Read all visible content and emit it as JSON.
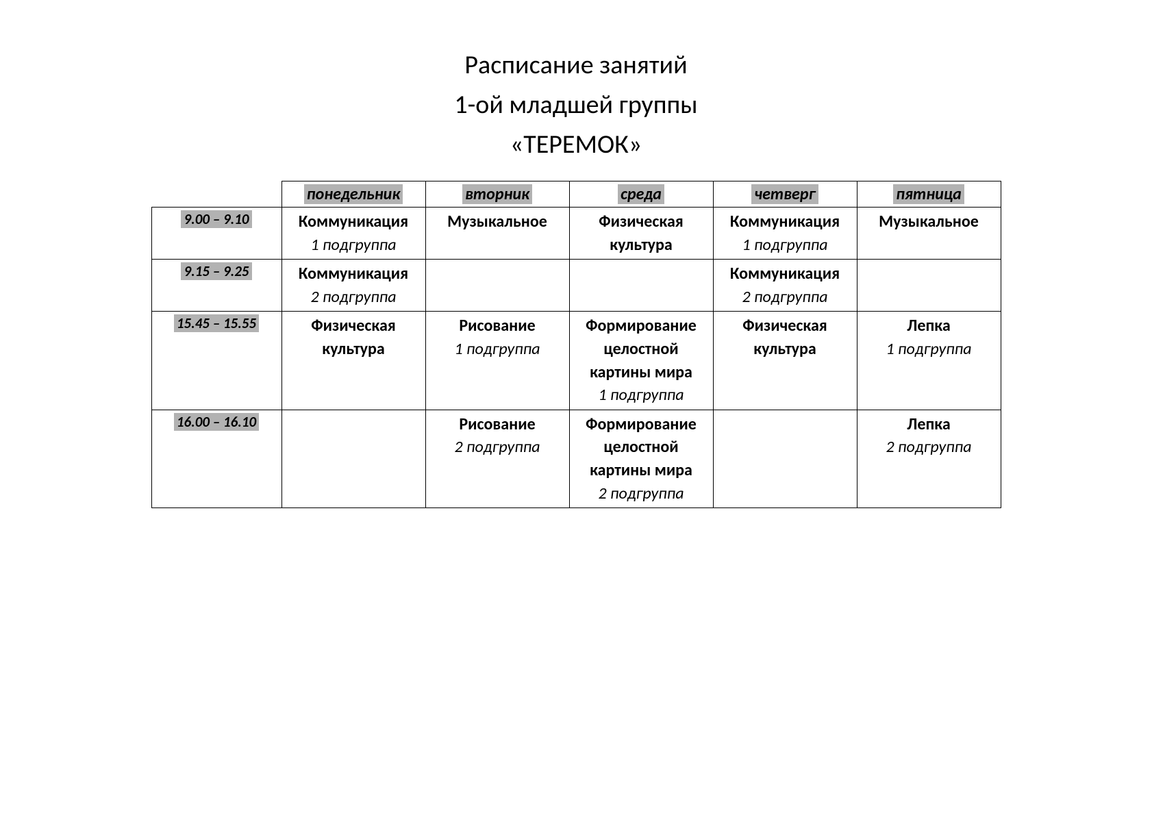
{
  "header": {
    "line1": "Расписание занятий",
    "line2": "1-ой младшей группы",
    "line3": "«ТЕРЕМОК»"
  },
  "schedule": {
    "type": "table",
    "background_color": "#ffffff",
    "border_color": "#000000",
    "highlight_color": "#b2b2b2",
    "title_fontsize": 38,
    "header_fontsize": 24,
    "cell_fontsize": 24,
    "time_fontsize": 21,
    "column_widths": {
      "time": 190,
      "day": 210
    },
    "days": [
      "понедельник",
      "вторник",
      "среда",
      "четверг",
      "пятница"
    ],
    "times": [
      "9.00 – 9.10",
      "9.15 – 9.25",
      "15.45 – 15.55",
      "16.00 – 16.10"
    ],
    "cells": {
      "r0": {
        "c0": {
          "main": "Коммуникация",
          "sub": "1 подгруппа"
        },
        "c1": {
          "main": "Музыкальное",
          "sub": ""
        },
        "c2": {
          "main": "Физическая культура",
          "sub": ""
        },
        "c3": {
          "main": "Коммуникация",
          "sub": "1 подгруппа"
        },
        "c4": {
          "main": "Музыкальное",
          "sub": ""
        }
      },
      "r1": {
        "c0": {
          "main": "Коммуникация",
          "sub": "2 подгруппа"
        },
        "c1": {
          "main": "",
          "sub": ""
        },
        "c2": {
          "main": "",
          "sub": ""
        },
        "c3": {
          "main": "Коммуникация",
          "sub": "2 подгруппа"
        },
        "c4": {
          "main": "",
          "sub": ""
        }
      },
      "r2": {
        "c0": {
          "main": "Физическая культура",
          "sub": ""
        },
        "c1": {
          "main": "Рисование",
          "sub": "1 подгруппа"
        },
        "c2": {
          "main": "Формирование целостной картины мира",
          "sub": "1 подгруппа"
        },
        "c3": {
          "main": "Физическая культура",
          "sub": ""
        },
        "c4": {
          "main": "Лепка",
          "sub": "1 подгруппа"
        }
      },
      "r3": {
        "c0": {
          "main": "",
          "sub": ""
        },
        "c1": {
          "main": "Рисование",
          "sub": "2 подгруппа"
        },
        "c2": {
          "main": "Формирование целостной картины мира",
          "sub": "2 подгруппа"
        },
        "c3": {
          "main": "",
          "sub": ""
        },
        "c4": {
          "main": "Лепка",
          "sub": "2 подгруппа"
        }
      }
    }
  }
}
